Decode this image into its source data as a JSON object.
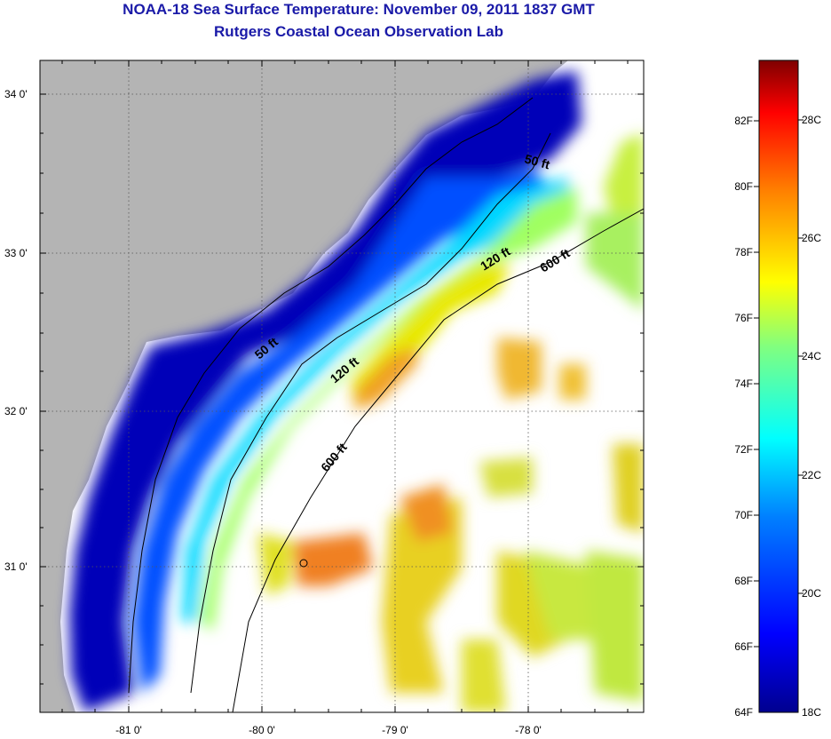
{
  "title": "NOAA-18 Sea Surface Temperature:  November 09, 2011 1837 GMT",
  "subtitle": "Rutgers Coastal Ocean Observation Lab",
  "lat_ticks": [
    "34 0'",
    "33 0'",
    "32 0'",
    "31 0'"
  ],
  "lon_ticks": [
    "-81 0'",
    "-80 0'",
    "-79 0'",
    "-78 0'"
  ],
  "contours": [
    "50 ft",
    "120 ft",
    "600 ft",
    "50 ft",
    "120 ft",
    "600 ft"
  ],
  "colorbar": {
    "fahrenheit": [
      "82F",
      "80F",
      "78F",
      "76F",
      "74F",
      "72F",
      "70F",
      "68F",
      "66F",
      "64F"
    ],
    "celsius": [
      "28C",
      "26C",
      "24C",
      "22C",
      "20C",
      "18C"
    ],
    "colors": [
      "#7f0000",
      "#ff0000",
      "#ff8000",
      "#ffff00",
      "#80ff80",
      "#00ffff",
      "#0080ff",
      "#0000ff",
      "#00008f"
    ]
  },
  "colors": {
    "land": "#b4b4b4",
    "no_data": "#ffffff",
    "title": "#1a1aa8"
  }
}
